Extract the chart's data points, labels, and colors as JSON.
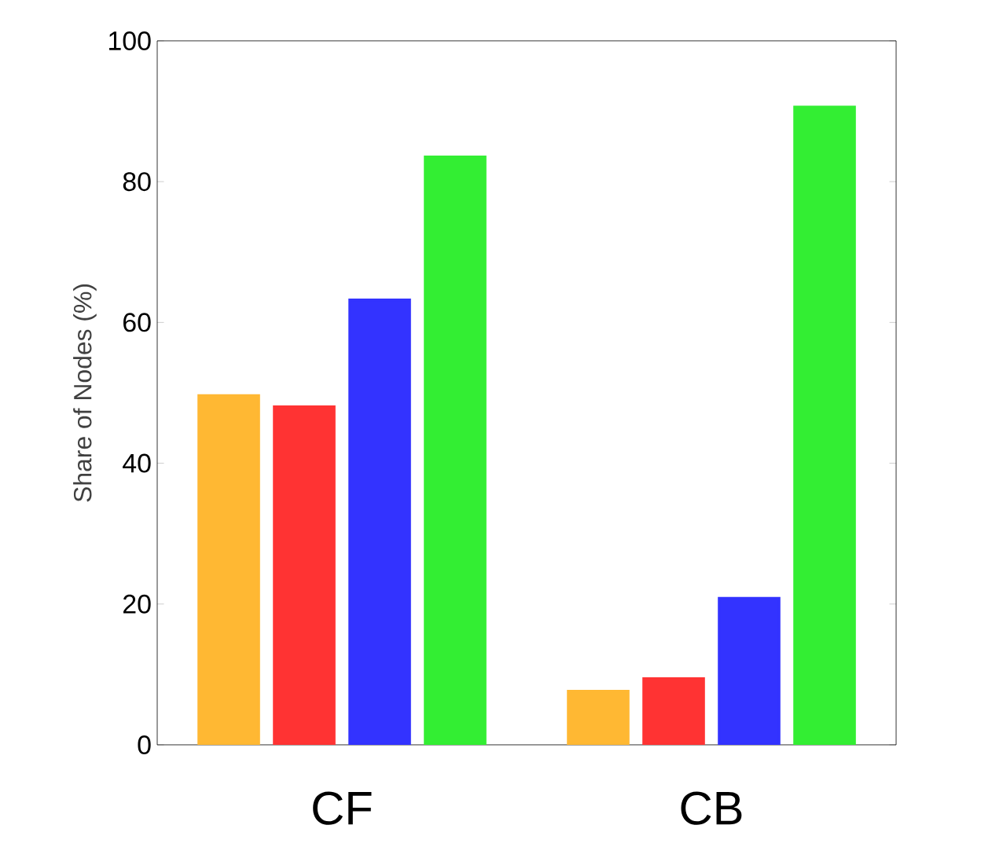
{
  "chart_data": {
    "type": "bar",
    "ylabel": "Share of Nodes (%)",
    "categories": [
      "CF",
      "CB"
    ],
    "series": [
      {
        "color": "#ffb833",
        "values": [
          49.6,
          7.6
        ]
      },
      {
        "color": "#ff3333",
        "values": [
          48.0,
          9.4
        ]
      },
      {
        "color": "#3333ff",
        "values": [
          63.2,
          20.8
        ]
      },
      {
        "color": "#33ee33",
        "values": [
          83.5,
          90.6
        ]
      }
    ],
    "ylim": [
      0,
      100
    ],
    "yticks": [
      0,
      20,
      40,
      60,
      80,
      100
    ],
    "grid": false
  }
}
